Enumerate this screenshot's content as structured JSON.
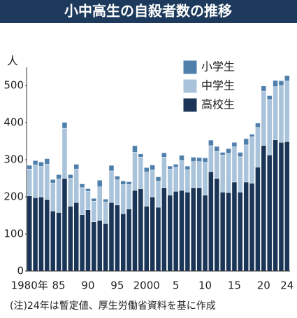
{
  "chart_data": {
    "type": "stacked_bar",
    "title": "小中高生の自殺者数の推移",
    "y_label": "人",
    "note": "(注)24年は暫定値、厚生労働省資料を基に作成",
    "categories": [
      "1980年",
      null,
      null,
      null,
      null,
      "85",
      null,
      null,
      null,
      null,
      "90",
      null,
      null,
      null,
      null,
      "95",
      null,
      null,
      null,
      null,
      "2000",
      null,
      null,
      null,
      null,
      "5",
      null,
      null,
      null,
      null,
      "10",
      null,
      null,
      null,
      null,
      "15",
      null,
      null,
      null,
      null,
      "20",
      null,
      null,
      null,
      "24"
    ],
    "series": [
      {
        "name": "小学生",
        "color": "#4f7fab",
        "values": [
          10,
          12,
          12,
          15,
          10,
          12,
          16,
          10,
          13,
          10,
          7,
          8,
          18,
          8,
          15,
          10,
          10,
          8,
          18,
          9,
          12,
          14,
          12,
          12,
          8,
          8,
          14,
          10,
          12,
          11,
          12,
          15,
          14,
          7,
          13,
          12,
          12,
          17,
          7,
          12,
          14,
          11,
          17,
          13,
          15
        ]
      },
      {
        "name": "中学生",
        "color": "#a9c3db",
        "values": [
          72,
          88,
          82,
          95,
          75,
          90,
          135,
          75,
          90,
          73,
          50,
          55,
          90,
          58,
          85,
          68,
          78,
          65,
          102,
          85,
          92,
          72,
          70,
          82,
          70,
          65,
          80,
          60,
          70,
          70,
          88,
          70,
          72,
          100,
          105,
          95,
          95,
          100,
          125,
          107,
          146,
          149,
          143,
          153,
          163
        ]
      },
      {
        "name": "高校生",
        "color": "#1a3557",
        "values": [
          203,
          198,
          200,
          193,
          162,
          158,
          250,
          175,
          185,
          152,
          165,
          133,
          137,
          128,
          185,
          178,
          155,
          168,
          218,
          222,
          175,
          200,
          172,
          225,
          205,
          215,
          218,
          213,
          225,
          225,
          205,
          268,
          250,
          213,
          212,
          240,
          213,
          240,
          237,
          280,
          339,
          313,
          354,
          347,
          349
        ]
      }
    ],
    "ylim": [
      0,
      540
    ],
    "yticks": [
      0,
      100,
      200,
      300,
      400,
      500
    ]
  }
}
